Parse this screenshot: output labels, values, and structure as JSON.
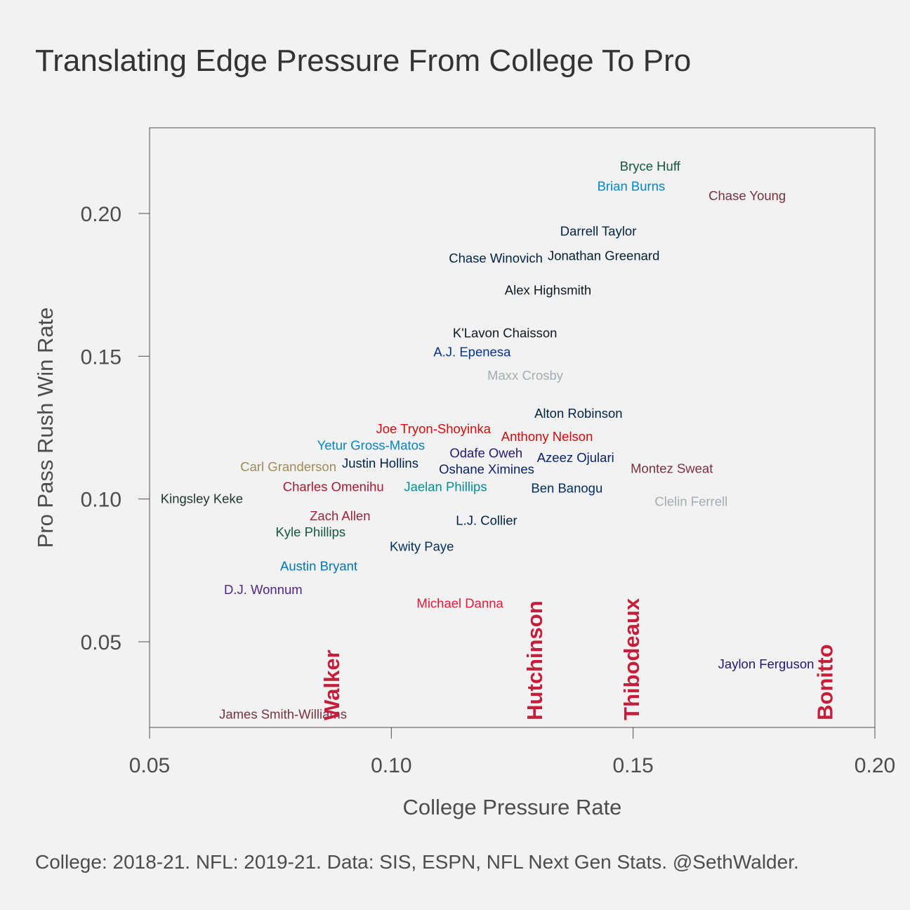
{
  "title": "Translating Edge Pressure From College To Pro",
  "caption": "College: 2018-21. NFL: 2019-21. Data: SIS, ESPN, NFL Next Gen Stats. @SethWalder.",
  "chart_data": {
    "type": "scatter",
    "title": "Translating Edge Pressure From College To Pro",
    "xlabel": "College Pressure Rate",
    "ylabel": "Pro Pass Rush Win Rate",
    "xlim": [
      0.05,
      0.2
    ],
    "ylim": [
      0.02,
      0.23
    ],
    "xticks": [
      0.05,
      0.1,
      0.15,
      0.2
    ],
    "xtick_labels": [
      "0.05",
      "0.10",
      "0.15",
      "0.20"
    ],
    "yticks": [
      0.05,
      0.1,
      0.15,
      0.2
    ],
    "ytick_labels": [
      "0.05",
      "0.10",
      "0.15",
      "0.20"
    ],
    "grid": false,
    "points": [
      {
        "label": "Bryce Huff",
        "x": 0.1535,
        "y": 0.2166,
        "color": "#125740"
      },
      {
        "label": "Brian Burns",
        "x": 0.1496,
        "y": 0.2096,
        "color": "#0085CA"
      },
      {
        "label": "Chase Young",
        "x": 0.1736,
        "y": 0.2063,
        "color": "#773141"
      },
      {
        "label": "Darrell Taylor",
        "x": 0.1428,
        "y": 0.1938,
        "color": "#002244"
      },
      {
        "label": "Chase Winovich",
        "x": 0.1216,
        "y": 0.1844,
        "color": "#002244"
      },
      {
        "label": "Jonathan Greenard",
        "x": 0.1439,
        "y": 0.1853,
        "color": "#03202F"
      },
      {
        "label": "Alex Highsmith",
        "x": 0.1324,
        "y": 0.1732,
        "color": "#101820"
      },
      {
        "label": "K'Lavon Chaisson",
        "x": 0.1235,
        "y": 0.1582,
        "color": "#101820"
      },
      {
        "label": "A.J. Epenesa",
        "x": 0.1167,
        "y": 0.1515,
        "color": "#00338D"
      },
      {
        "label": "Maxx Crosby",
        "x": 0.1277,
        "y": 0.1433,
        "color": "#A5ACAF"
      },
      {
        "label": "Alton Robinson",
        "x": 0.1387,
        "y": 0.1301,
        "color": "#002244"
      },
      {
        "label": "Joe Tryon-Shoyinka",
        "x": 0.1087,
        "y": 0.1246,
        "color": "#D50A0A"
      },
      {
        "label": "Anthony Nelson",
        "x": 0.1322,
        "y": 0.1219,
        "color": "#D50A0A"
      },
      {
        "label": "Yetur Gross-Matos",
        "x": 0.0958,
        "y": 0.1189,
        "color": "#0085CA"
      },
      {
        "label": "Odafe Oweh",
        "x": 0.1196,
        "y": 0.1162,
        "color": "#241773"
      },
      {
        "label": "Azeez Ojulari",
        "x": 0.1381,
        "y": 0.1145,
        "color": "#0B2265"
      },
      {
        "label": "Oshane Ximines",
        "x": 0.1197,
        "y": 0.1105,
        "color": "#0B2265"
      },
      {
        "label": "Carl Granderson",
        "x": 0.0787,
        "y": 0.1114,
        "color": "#A08A58"
      },
      {
        "label": "Justin Hollins",
        "x": 0.0977,
        "y": 0.1126,
        "color": "#002244"
      },
      {
        "label": "Montez Sweat",
        "x": 0.158,
        "y": 0.1107,
        "color": "#773141"
      },
      {
        "label": "Charles Omenihu",
        "x": 0.088,
        "y": 0.1044,
        "color": "#A71930"
      },
      {
        "label": "Jaelan Phillips",
        "x": 0.1112,
        "y": 0.1044,
        "color": "#008E97"
      },
      {
        "label": "Ben Banogu",
        "x": 0.1363,
        "y": 0.1039,
        "color": "#002C5F"
      },
      {
        "label": "Kingsley Keke",
        "x": 0.0608,
        "y": 0.1002,
        "color": "#203731"
      },
      {
        "label": "Clelin Ferrell",
        "x": 0.162,
        "y": 0.0992,
        "color": "#A5ACAF"
      },
      {
        "label": "Zach Allen",
        "x": 0.0894,
        "y": 0.0942,
        "color": "#97233F"
      },
      {
        "label": "L.J. Collier",
        "x": 0.1197,
        "y": 0.0926,
        "color": "#002244"
      },
      {
        "label": "Kyle Phillips",
        "x": 0.0833,
        "y": 0.0885,
        "color": "#125740"
      },
      {
        "label": "Kwity Paye",
        "x": 0.1063,
        "y": 0.0834,
        "color": "#002C5F"
      },
      {
        "label": "Austin Bryant",
        "x": 0.085,
        "y": 0.0765,
        "color": "#0076B6"
      },
      {
        "label": "D.J. Wonnum",
        "x": 0.0735,
        "y": 0.0683,
        "color": "#4F2683"
      },
      {
        "label": "Michael Danna",
        "x": 0.1142,
        "y": 0.0635,
        "color": "#E31837"
      },
      {
        "label": "Jaylon Ferguson",
        "x": 0.1775,
        "y": 0.0422,
        "color": "#241773"
      },
      {
        "label": "James Smith-Williams",
        "x": 0.0776,
        "y": 0.0247,
        "color": "#773141"
      }
    ],
    "prospects": [
      {
        "label": "Walker",
        "x": 0.0892,
        "y_bottom": 0.0225,
        "color": "#C41E3A"
      },
      {
        "label": "Hutchinson",
        "x": 0.1312,
        "y_bottom": 0.0225,
        "color": "#C41E3A"
      },
      {
        "label": "Thibodeaux",
        "x": 0.1512,
        "y_bottom": 0.0225,
        "color": "#C41E3A"
      },
      {
        "label": "Bonitto",
        "x": 0.1912,
        "y_bottom": 0.0225,
        "color": "#C41E3A"
      }
    ]
  }
}
